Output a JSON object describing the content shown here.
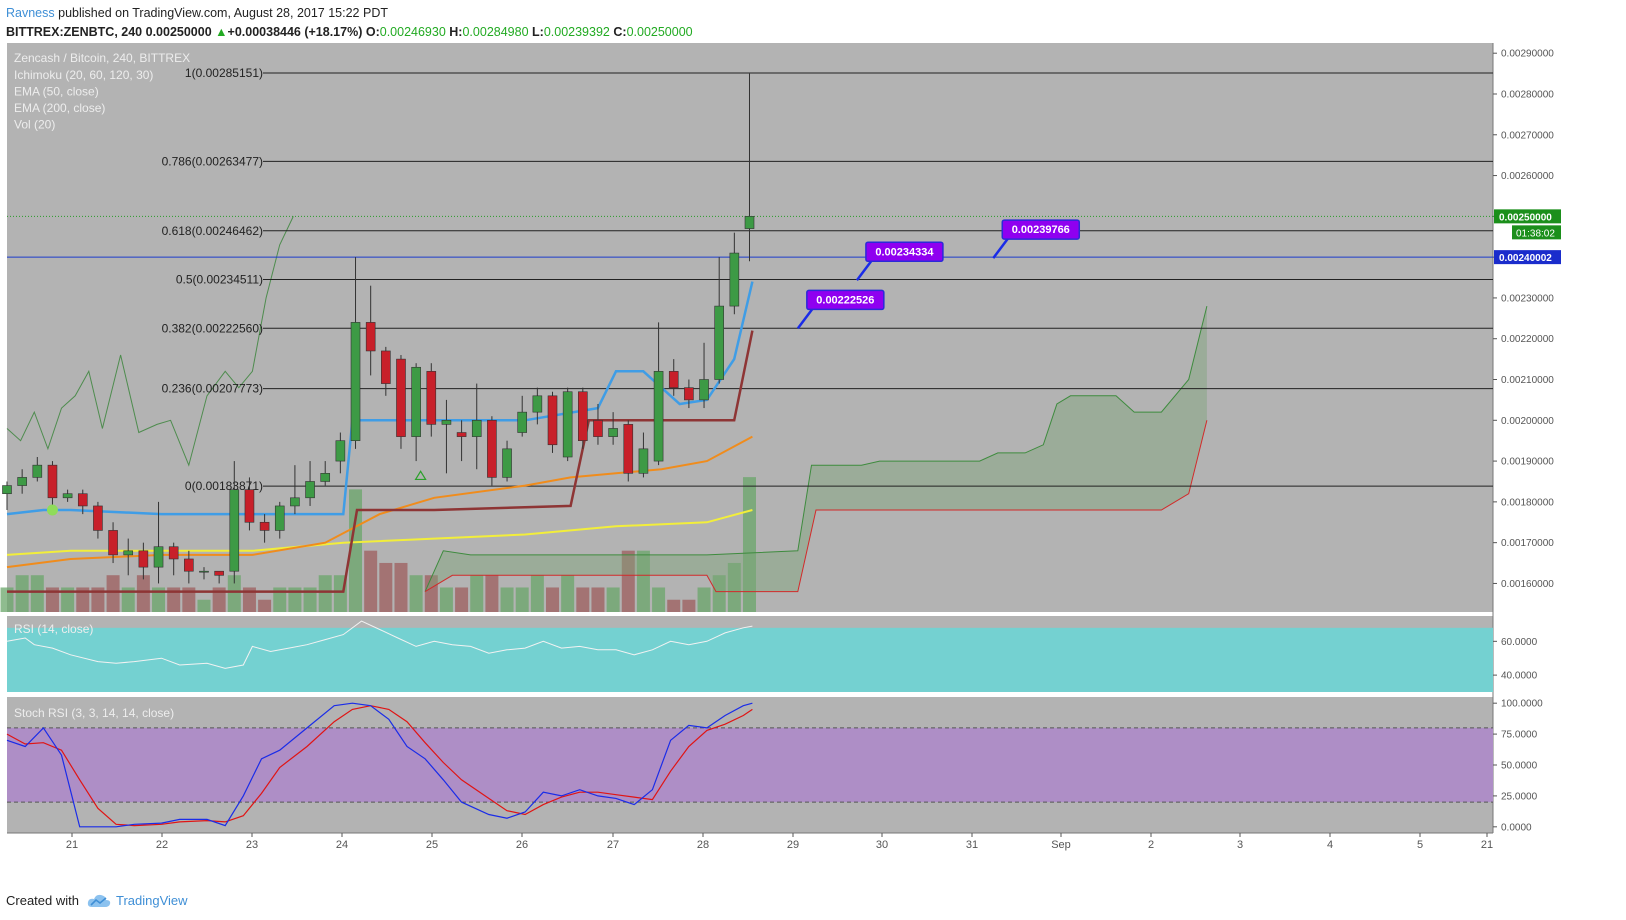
{
  "header": {
    "author": "Ravness",
    "published": "published on TradingView.com, August 28, 2017 15:22 PDT",
    "symbol": "BITTREX:ZENBTC, 240",
    "last": "0.00250000",
    "change_arrow": "▲",
    "change": "+0.00038446 (+18.17%)",
    "o_label": "O:",
    "o": "0.00246930",
    "h_label": "H:",
    "h": "0.00284980",
    "l_label": "L:",
    "l": "0.00239392",
    "c_label": "C:",
    "c": "0.00250000"
  },
  "legend": {
    "title": "Zencash / Bitcoin, 240, BITTREX",
    "items": [
      "Ichimoku (20, 60, 120, 30)",
      "EMA (50, close)",
      "EMA (200, close)",
      "Vol (20)"
    ]
  },
  "footer": {
    "created_with": "Created with",
    "brand": "TradingView"
  },
  "colors": {
    "background": "#b3b3b3",
    "bull": "#3d9a45",
    "bear": "#c8202a",
    "ema50": "#f08c1c",
    "ema200": "#f2ee3a",
    "conversion": "#3f9de6",
    "base": "#8e3535",
    "rsi_bg": "#74d1d1",
    "stoch_bg": "#ae8ec6",
    "stoch_k": "#1a2ce8",
    "stoch_d": "#e01414",
    "callout": "#8f00f0",
    "current_price": "#1b8f1b",
    "hline": "#1b3ccc"
  },
  "chart_data": {
    "type": "candlestick",
    "title": "Zencash / Bitcoin, 240, BITTREX",
    "x_ticks": [
      "21",
      "22",
      "23",
      "24",
      "25",
      "26",
      "27",
      "28",
      "29",
      "30",
      "31",
      "Sep",
      "2",
      "3",
      "4",
      "5",
      "21"
    ],
    "y_ticks": [
      "0.00160000",
      "0.00170000",
      "0.00180000",
      "0.00190000",
      "0.00200000",
      "0.00210000",
      "0.00220000",
      "0.00230000",
      "0.00240000",
      "0.00250000",
      "0.00260000",
      "0.00270000",
      "0.00280000",
      "0.00290000"
    ],
    "ylim": [
      0.00153,
      0.002925
    ],
    "candle_index_to_day": {
      "start": 20.3,
      "step": 0.1667
    },
    "candles": [
      [
        0.00182,
        0.00184,
        0.00178,
        0.00185
      ],
      [
        0.00184,
        0.00186,
        0.00182,
        0.00188
      ],
      [
        0.00186,
        0.00189,
        0.00185,
        0.00191
      ],
      [
        0.00189,
        0.00181,
        0.00179,
        0.0019
      ],
      [
        0.00181,
        0.00182,
        0.0018,
        0.00183
      ],
      [
        0.00182,
        0.00179,
        0.00177,
        0.00183
      ],
      [
        0.00179,
        0.00173,
        0.00171,
        0.0018
      ],
      [
        0.00173,
        0.00167,
        0.00165,
        0.00175
      ],
      [
        0.00167,
        0.00168,
        0.00162,
        0.00171
      ],
      [
        0.00168,
        0.00164,
        0.00161,
        0.0017
      ],
      [
        0.00164,
        0.00169,
        0.0016,
        0.0018
      ],
      [
        0.00169,
        0.00166,
        0.00162,
        0.0017
      ],
      [
        0.00166,
        0.00163,
        0.0016,
        0.00168
      ],
      [
        0.00163,
        0.00163,
        0.00161,
        0.00164
      ],
      [
        0.00163,
        0.00162,
        0.0016,
        0.00163
      ],
      [
        0.00163,
        0.00183,
        0.0016,
        0.0019
      ],
      [
        0.00183,
        0.00175,
        0.00173,
        0.00186
      ],
      [
        0.00175,
        0.00173,
        0.0017,
        0.00177
      ],
      [
        0.00173,
        0.00179,
        0.00171,
        0.0018
      ],
      [
        0.00179,
        0.00181,
        0.00177,
        0.00189
      ],
      [
        0.00181,
        0.00185,
        0.00179,
        0.0019
      ],
      [
        0.00185,
        0.00187,
        0.00184,
        0.0019
      ],
      [
        0.0019,
        0.00195,
        0.00187,
        0.00197
      ],
      [
        0.00195,
        0.00224,
        0.00193,
        0.0024
      ],
      [
        0.00224,
        0.00217,
        0.00211,
        0.00233
      ],
      [
        0.00217,
        0.00209,
        0.00206,
        0.00218
      ],
      [
        0.00215,
        0.00196,
        0.00193,
        0.00216
      ],
      [
        0.00196,
        0.00213,
        0.0019,
        0.00214
      ],
      [
        0.00212,
        0.00199,
        0.00196,
        0.00214
      ],
      [
        0.00199,
        0.002,
        0.00187,
        0.00205
      ],
      [
        0.00197,
        0.00196,
        0.0019,
        0.002
      ],
      [
        0.00196,
        0.002,
        0.00188,
        0.00209
      ],
      [
        0.002,
        0.00186,
        0.00184,
        0.00201
      ],
      [
        0.00186,
        0.00193,
        0.00185,
        0.00195
      ],
      [
        0.00197,
        0.00202,
        0.00196,
        0.00206
      ],
      [
        0.00202,
        0.00206,
        0.00199,
        0.00208
      ],
      [
        0.00206,
        0.00194,
        0.00192,
        0.00207
      ],
      [
        0.00191,
        0.00207,
        0.0019,
        0.00208
      ],
      [
        0.00207,
        0.00195,
        0.00193,
        0.00208
      ],
      [
        0.002,
        0.00196,
        0.00194,
        0.00204
      ],
      [
        0.00196,
        0.00198,
        0.00194,
        0.00202
      ],
      [
        0.00199,
        0.00187,
        0.00185,
        0.002
      ],
      [
        0.00187,
        0.00193,
        0.00186,
        0.00197
      ],
      [
        0.0019,
        0.00212,
        0.00189,
        0.00224
      ],
      [
        0.00212,
        0.00208,
        0.00206,
        0.00215
      ],
      [
        0.00208,
        0.00205,
        0.00203,
        0.0021
      ],
      [
        0.00205,
        0.0021,
        0.00203,
        0.00219
      ],
      [
        0.0021,
        0.00228,
        0.00209,
        0.0024
      ],
      [
        0.00228,
        0.00241,
        0.00226,
        0.00246
      ],
      [
        0.00247,
        0.0025,
        0.00239,
        0.00285
      ]
    ],
    "fibonacci": [
      {
        "label": "1(0.00285151)",
        "value": 0.00285151
      },
      {
        "label": "0.786(0.00263477)",
        "value": 0.00263477
      },
      {
        "label": "0.618(0.00246462)",
        "value": 0.00246462
      },
      {
        "label": "0.5(0.00234511)",
        "value": 0.00234511
      },
      {
        "label": "0.382(0.00222560)",
        "value": 0.0022256
      },
      {
        "label": "0.236(0.00207773)",
        "value": 0.00207773
      },
      {
        "label": "0(0.00183871)",
        "value": 0.00183871
      }
    ],
    "horizontal_line": 0.00240002,
    "price_labels": {
      "horizontal": "0.00240002",
      "current": "0.00250000",
      "countdown": "01:38:02"
    },
    "callouts": [
      {
        "text": "0.00234334",
        "day": 29.65,
        "value": 0.00234334
      },
      {
        "text": "0.00239766",
        "day": 31.15,
        "value": 0.00239766
      },
      {
        "text": "0.00222526",
        "day": 29.0,
        "value": 0.00222526
      }
    ],
    "ema50": [
      [
        20.3,
        0.00164
      ],
      [
        21,
        0.00166
      ],
      [
        22,
        0.00167
      ],
      [
        23,
        0.00167
      ],
      [
        23.8,
        0.0017
      ],
      [
        24.4,
        0.00177
      ],
      [
        25,
        0.00181
      ],
      [
        26,
        0.00184
      ],
      [
        26.5,
        0.00186
      ],
      [
        27,
        0.00187
      ],
      [
        27.5,
        0.00188
      ],
      [
        28,
        0.0019
      ],
      [
        28.5,
        0.00196
      ]
    ],
    "ema200": [
      [
        20.3,
        0.00167
      ],
      [
        21,
        0.00168
      ],
      [
        22,
        0.00168
      ],
      [
        23,
        0.00168
      ],
      [
        24,
        0.0017
      ],
      [
        25,
        0.00171
      ],
      [
        26,
        0.00172
      ],
      [
        27,
        0.00174
      ],
      [
        28,
        0.00175
      ],
      [
        28.5,
        0.00178
      ]
    ],
    "conversion_line": [
      [
        20.3,
        0.00177
      ],
      [
        20.7,
        0.00178
      ],
      [
        21,
        0.00178
      ],
      [
        22,
        0.00177
      ],
      [
        23,
        0.00177
      ],
      [
        24,
        0.00177
      ],
      [
        24.1,
        0.002
      ],
      [
        26,
        0.002
      ],
      [
        26.8,
        0.00203
      ],
      [
        27,
        0.00212
      ],
      [
        27.3,
        0.00212
      ],
      [
        27.7,
        0.00204
      ],
      [
        28,
        0.00205
      ],
      [
        28.3,
        0.00215
      ],
      [
        28.5,
        0.00234
      ]
    ],
    "base_line": [
      [
        20.3,
        0.00158
      ],
      [
        24,
        0.00158
      ],
      [
        24.15,
        0.00178
      ],
      [
        25,
        0.00178
      ],
      [
        26.5,
        0.00179
      ],
      [
        26.7,
        0.002
      ],
      [
        28.3,
        0.002
      ],
      [
        28.5,
        0.00222
      ]
    ],
    "lagging_span": [
      [
        20.3,
        0.00198
      ],
      [
        20.45,
        0.00195
      ],
      [
        20.6,
        0.00202
      ],
      [
        20.75,
        0.00193
      ],
      [
        20.9,
        0.00203
      ],
      [
        21.05,
        0.00206
      ],
      [
        21.2,
        0.00212
      ],
      [
        21.35,
        0.00198
      ],
      [
        21.55,
        0.00216
      ],
      [
        21.75,
        0.00197
      ],
      [
        21.95,
        0.00199
      ],
      [
        22.1,
        0.002
      ],
      [
        22.3,
        0.00189
      ],
      [
        22.5,
        0.00206
      ],
      [
        22.7,
        0.00212
      ],
      [
        22.85,
        0.00208
      ],
      [
        23,
        0.00212
      ],
      [
        23.15,
        0.0023
      ],
      [
        23.3,
        0.00243
      ],
      [
        23.45,
        0.0025
      ]
    ],
    "cloud_span_a": [
      [
        24.9,
        0.00158
      ],
      [
        25.1,
        0.00168
      ],
      [
        25.4,
        0.00167
      ],
      [
        26,
        0.00167
      ],
      [
        27,
        0.00167
      ],
      [
        28,
        0.00167
      ],
      [
        29,
        0.00168
      ],
      [
        29.15,
        0.00189
      ],
      [
        29.7,
        0.00189
      ],
      [
        29.9,
        0.0019
      ],
      [
        31,
        0.0019
      ],
      [
        31.2,
        0.00192
      ],
      [
        31.5,
        0.00192
      ],
      [
        31.7,
        0.00194
      ],
      [
        31.85,
        0.00204
      ],
      [
        32,
        0.00206
      ],
      [
        32.5,
        0.00206
      ],
      [
        32.7,
        0.00202
      ],
      [
        33,
        0.00202
      ],
      [
        33.3,
        0.0021
      ],
      [
        33.5,
        0.00228
      ]
    ],
    "cloud_span_b": [
      [
        24.9,
        0.00158
      ],
      [
        25.2,
        0.00162
      ],
      [
        28,
        0.00162
      ],
      [
        28.1,
        0.00158
      ],
      [
        29,
        0.00158
      ],
      [
        29.2,
        0.00178
      ],
      [
        33,
        0.00178
      ],
      [
        33.3,
        0.00182
      ],
      [
        33.5,
        0.002
      ]
    ],
    "volume": [
      2,
      3,
      3,
      2,
      2,
      2,
      2,
      3,
      2,
      3,
      2,
      2,
      2,
      1,
      2,
      3,
      2,
      1,
      2,
      2,
      2,
      3,
      3,
      10,
      5,
      4,
      4,
      3,
      3,
      2,
      2,
      3,
      3,
      2,
      2,
      3,
      2,
      3,
      2,
      2,
      2,
      5,
      5,
      2,
      1,
      1,
      2,
      3,
      4,
      11
    ],
    "rsi": {
      "title": "RSI (14, close)",
      "y_ticks": [
        "40.0000",
        "60.0000"
      ],
      "ylim": [
        30,
        75
      ],
      "band": [
        30,
        68
      ],
      "values": [
        [
          20.3,
          60
        ],
        [
          20.5,
          62
        ],
        [
          20.6,
          58
        ],
        [
          20.8,
          56
        ],
        [
          21,
          52
        ],
        [
          21.3,
          48
        ],
        [
          21.5,
          47
        ],
        [
          21.7,
          48
        ],
        [
          22,
          50
        ],
        [
          22.2,
          46
        ],
        [
          22.5,
          47
        ],
        [
          22.7,
          44
        ],
        [
          22.9,
          46
        ],
        [
          23,
          57
        ],
        [
          23.2,
          54
        ],
        [
          23.4,
          56
        ],
        [
          23.6,
          58
        ],
        [
          23.8,
          61
        ],
        [
          24,
          64
        ],
        [
          24.2,
          72
        ],
        [
          24.4,
          67
        ],
        [
          24.6,
          62
        ],
        [
          24.8,
          57
        ],
        [
          25,
          60
        ],
        [
          25.2,
          58
        ],
        [
          25.4,
          57
        ],
        [
          25.6,
          53
        ],
        [
          25.8,
          55
        ],
        [
          26,
          56
        ],
        [
          26.2,
          60
        ],
        [
          26.4,
          56
        ],
        [
          26.6,
          57
        ],
        [
          26.8,
          55
        ],
        [
          27,
          55
        ],
        [
          27.2,
          52
        ],
        [
          27.4,
          55
        ],
        [
          27.6,
          60
        ],
        [
          27.8,
          58
        ],
        [
          28,
          60
        ],
        [
          28.2,
          65
        ],
        [
          28.4,
          68
        ],
        [
          28.5,
          69
        ]
      ]
    },
    "stoch_rsi": {
      "title": "Stoch RSI (3, 3, 14, 14, close)",
      "y_ticks": [
        "0.0000",
        "25.0000",
        "50.0000",
        "75.0000",
        "100.0000"
      ],
      "ylim": [
        -5,
        105
      ],
      "band": [
        20,
        80
      ],
      "k": [
        [
          20.3,
          70
        ],
        [
          20.5,
          65
        ],
        [
          20.7,
          80
        ],
        [
          20.9,
          58
        ],
        [
          21.1,
          0
        ],
        [
          21.3,
          0
        ],
        [
          21.5,
          0
        ],
        [
          21.7,
          2
        ],
        [
          22,
          3
        ],
        [
          22.2,
          6
        ],
        [
          22.5,
          6
        ],
        [
          22.7,
          1
        ],
        [
          22.9,
          25
        ],
        [
          23.1,
          55
        ],
        [
          23.3,
          62
        ],
        [
          23.6,
          80
        ],
        [
          23.9,
          98
        ],
        [
          24.1,
          100
        ],
        [
          24.3,
          98
        ],
        [
          24.5,
          87
        ],
        [
          24.7,
          65
        ],
        [
          24.9,
          55
        ],
        [
          25.1,
          38
        ],
        [
          25.3,
          20
        ],
        [
          25.6,
          10
        ],
        [
          25.8,
          7
        ],
        [
          26,
          12
        ],
        [
          26.2,
          28
        ],
        [
          26.4,
          25
        ],
        [
          26.6,
          30
        ],
        [
          26.8,
          25
        ],
        [
          27,
          23
        ],
        [
          27.2,
          18
        ],
        [
          27.4,
          30
        ],
        [
          27.6,
          70
        ],
        [
          27.8,
          82
        ],
        [
          28,
          80
        ],
        [
          28.2,
          90
        ],
        [
          28.4,
          98
        ],
        [
          28.5,
          100
        ]
      ],
      "d": [
        [
          20.3,
          75
        ],
        [
          20.5,
          67
        ],
        [
          20.7,
          68
        ],
        [
          20.9,
          62
        ],
        [
          21.1,
          38
        ],
        [
          21.3,
          15
        ],
        [
          21.5,
          2
        ],
        [
          21.7,
          1
        ],
        [
          22,
          2
        ],
        [
          22.2,
          4
        ],
        [
          22.5,
          5
        ],
        [
          22.7,
          4
        ],
        [
          22.9,
          9
        ],
        [
          23.1,
          27
        ],
        [
          23.3,
          48
        ],
        [
          23.6,
          65
        ],
        [
          23.9,
          85
        ],
        [
          24.1,
          95
        ],
        [
          24.3,
          98
        ],
        [
          24.5,
          95
        ],
        [
          24.7,
          85
        ],
        [
          24.9,
          68
        ],
        [
          25.1,
          52
        ],
        [
          25.3,
          38
        ],
        [
          25.6,
          23
        ],
        [
          25.8,
          13
        ],
        [
          26,
          10
        ],
        [
          26.2,
          18
        ],
        [
          26.4,
          24
        ],
        [
          26.6,
          28
        ],
        [
          26.8,
          28
        ],
        [
          27,
          26
        ],
        [
          27.2,
          24
        ],
        [
          27.4,
          22
        ],
        [
          27.6,
          45
        ],
        [
          27.8,
          65
        ],
        [
          28,
          78
        ],
        [
          28.2,
          83
        ],
        [
          28.4,
          90
        ],
        [
          28.5,
          95
        ]
      ]
    }
  }
}
